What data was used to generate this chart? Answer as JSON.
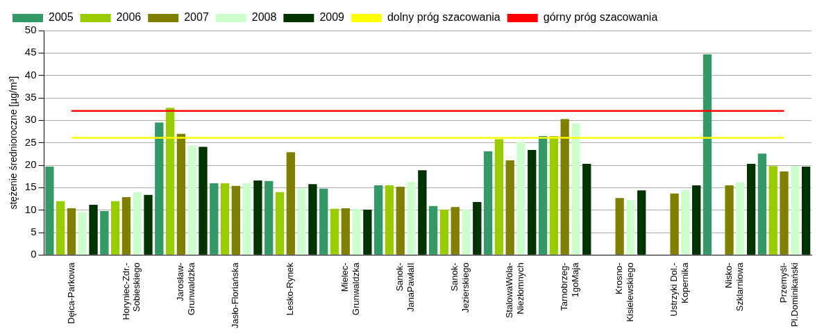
{
  "chart_data": {
    "type": "bar",
    "ylabel": "stężenie średnioroczne [µg/m³]",
    "categories": [
      "Dęica-Parkowa",
      "Horyniec-Zdr.-\nSobieskiego",
      "Jarosław-\nGrunwaldzka",
      "Jasło-Floriańska",
      "Lesko-Rynek",
      "Mielec-\nGrunwaldzka",
      "Sanok-\nJanaPawłaII",
      "Sanok-\nJezierskiego",
      "StalowaWola-\nNiezłomnych",
      "Tarnobrzeg-\n1goMaja",
      "Krosno-\nKisielewskiego",
      "Ustrzyki Dol.-\nKopernika",
      "Nisko-\nSzklarniowa",
      "Przemyśl-\nPl.Dominikański"
    ],
    "series": [
      {
        "name": "2005",
        "color": "#339966",
        "values": [
          19.7,
          9.8,
          29.5,
          16,
          16.5,
          14.8,
          15.5,
          10.9,
          23.1,
          26.5,
          null,
          null,
          44.7,
          22.6
        ]
      },
      {
        "name": "2006",
        "color": "#99cc00",
        "values": [
          12,
          12,
          32.8,
          16,
          14,
          10.3,
          15.5,
          10.1,
          25.8,
          26.5,
          null,
          null,
          null,
          19.8
        ]
      },
      {
        "name": "2007",
        "color": "#808000",
        "values": [
          10.4,
          12.9,
          27,
          15.4,
          22.9,
          10.4,
          15.2,
          10.7,
          21.1,
          30.3,
          12.7,
          13.7,
          15.5,
          18.6
        ]
      },
      {
        "name": "2008",
        "color": "#ccffcc",
        "values": [
          9.6,
          14,
          24.4,
          16,
          14.8,
          10.3,
          16.3,
          10.1,
          25.2,
          29.3,
          12.2,
          14.5,
          16.2,
          19.8
        ]
      },
      {
        "name": "2009",
        "color": "#003300",
        "values": [
          11.2,
          13.4,
          24.1,
          16.6,
          15.8,
          10.1,
          18.9,
          11.8,
          23.4,
          20.3,
          14.4,
          15.5,
          20.3,
          19.7
        ]
      },
      {
        "name": "dolny próg szacowania",
        "type": "line",
        "color": "#ffff00",
        "values": [
          26.1,
          26.1,
          26.1,
          26.1,
          26.1,
          26.1,
          26.1,
          26.1,
          26.1,
          26.1,
          26.1,
          26.1,
          26.1,
          26.1
        ]
      },
      {
        "name": "górny próg szacowania",
        "type": "line",
        "color": "#ff0000",
        "values": [
          32.1,
          32.1,
          32.1,
          32.1,
          32.1,
          32.1,
          32.1,
          32.1,
          32.1,
          32.1,
          32.1,
          32.1,
          32.1,
          32.1
        ]
      }
    ],
    "ylim": [
      0,
      50
    ],
    "yticks": [
      0,
      5,
      10,
      15,
      20,
      25,
      30,
      35,
      40,
      45,
      50
    ],
    "grid": "y",
    "legend": "top"
  }
}
